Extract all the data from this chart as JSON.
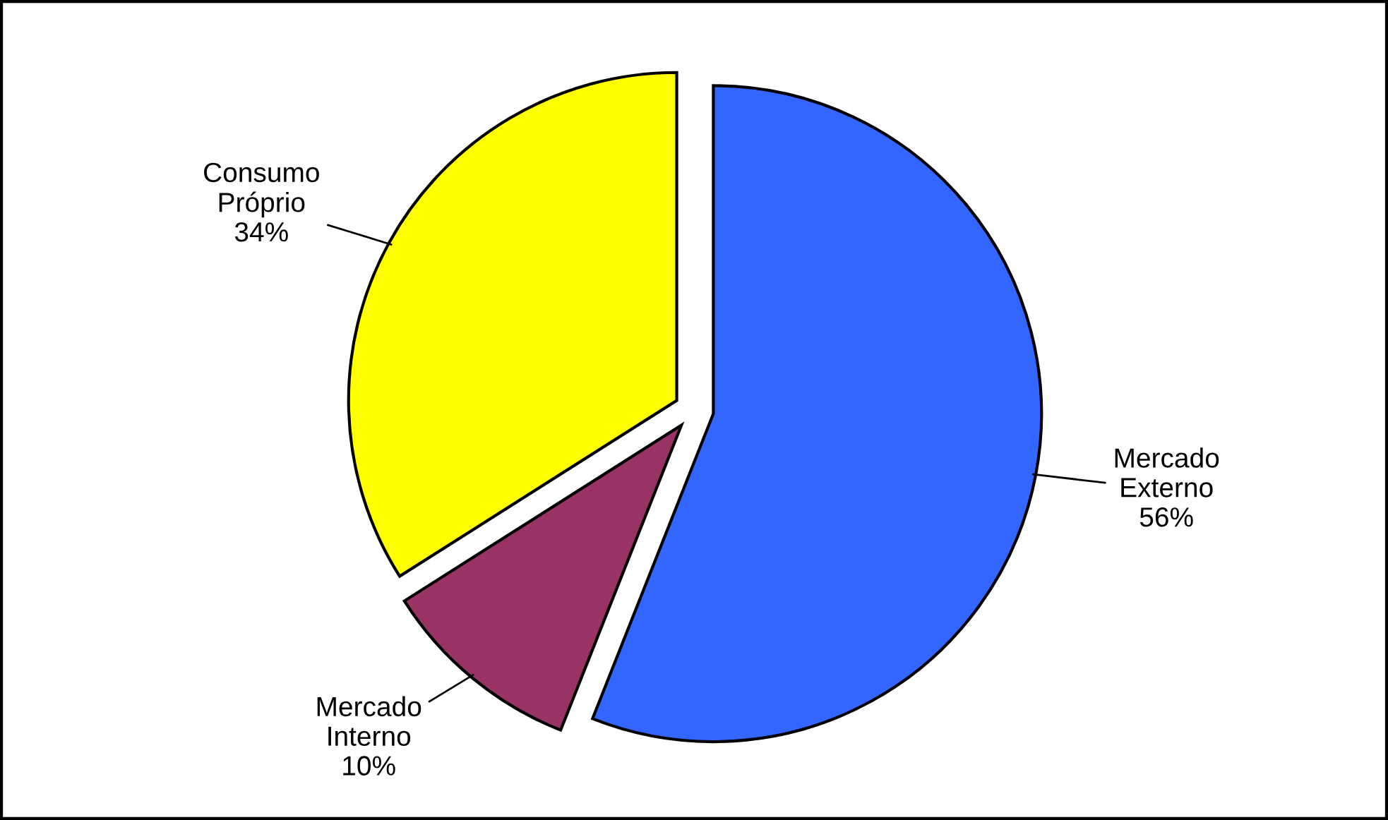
{
  "chart_data": {
    "type": "pie",
    "categories": [
      "Mercado Externo",
      "Mercado Interno",
      "Consumo Próprio"
    ],
    "values": [
      56,
      10,
      34
    ],
    "value_labels": [
      "56%",
      "10%",
      "34%"
    ],
    "colors": [
      "#3366ff",
      "#993366",
      "#ffff00"
    ]
  }
}
